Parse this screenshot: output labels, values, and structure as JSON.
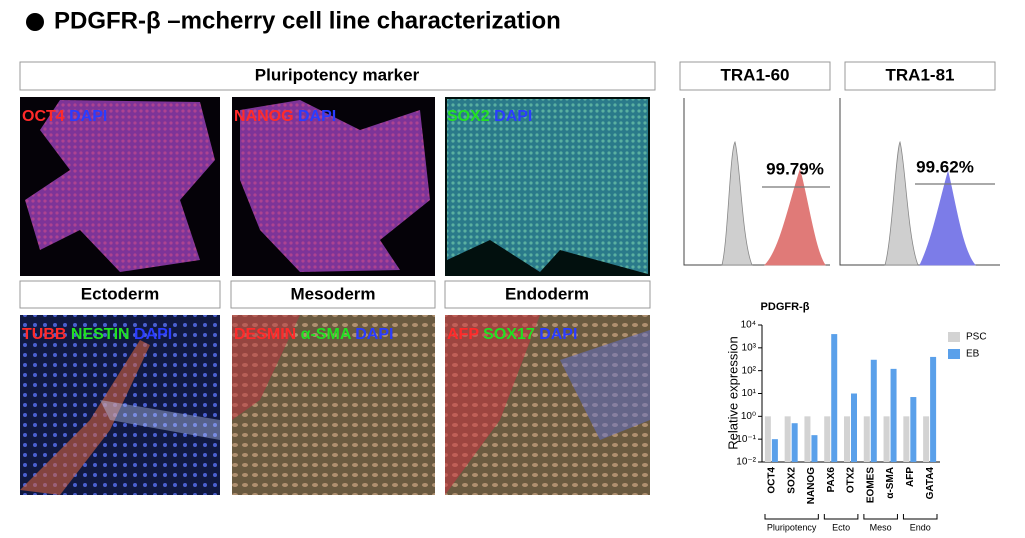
{
  "title": "PDGFR-β –mcherry cell line characterization",
  "pluripotency_header": "Pluripotency marker",
  "lineage_headers": [
    "Ectoderm",
    "Mesoderm",
    "Endoderm"
  ],
  "image_panels": [
    {
      "labels": [
        {
          "text": "OCT4",
          "color": "#ff2a2a"
        },
        {
          "text": "DAPI",
          "color": "#2a3cff"
        }
      ]
    },
    {
      "labels": [
        {
          "text": "NANOG",
          "color": "#ff2a2a"
        },
        {
          "text": "DAPI",
          "color": "#2a3cff"
        }
      ]
    },
    {
      "labels": [
        {
          "text": "SOX2",
          "color": "#22e022"
        },
        {
          "text": "DAPI",
          "color": "#2a3cff"
        }
      ]
    },
    {
      "labels": [
        {
          "text": "TUBB",
          "color": "#ff2a2a"
        },
        {
          "text": "NESTIN",
          "color": "#22e022"
        },
        {
          "text": "DAPI",
          "color": "#2a3cff"
        }
      ]
    },
    {
      "labels": [
        {
          "text": "DESMIN",
          "color": "#ff2a2a"
        },
        {
          "text": "α-SMA",
          "color": "#22e022"
        },
        {
          "text": "DAPI",
          "color": "#2a3cff"
        }
      ]
    },
    {
      "labels": [
        {
          "text": "AFP",
          "color": "#ff2a2a"
        },
        {
          "text": "SOX17",
          "color": "#22e022"
        },
        {
          "text": "DAPI",
          "color": "#2a3cff"
        }
      ]
    }
  ],
  "flow_panels": [
    {
      "title": "TRA1-60",
      "percent": "99.79%",
      "color": "#e07a78"
    },
    {
      "title": "TRA1-81",
      "percent": "99.62%",
      "color": "#7c7ce8"
    }
  ],
  "chart_data": {
    "type": "bar",
    "title": "PDGFR-β",
    "y_label": "Relative expression",
    "categories": [
      "OCT4",
      "SOX2",
      "NANOG",
      "PAX6",
      "OTX2",
      "EOMES",
      "α-SMA",
      "AFP",
      "GATA4"
    ],
    "groups": [
      "Pluripotency",
      "Ecto",
      "Meso",
      "Endo"
    ],
    "series": [
      {
        "name": "PSC",
        "color": "#d3d3d3",
        "values": [
          1,
          1,
          1,
          1,
          1,
          1,
          1,
          1,
          1
        ]
      },
      {
        "name": "EB",
        "color": "#5aa0ea",
        "values": [
          0.1,
          0.5,
          0.15,
          4000,
          10,
          300,
          120,
          7,
          400
        ]
      }
    ],
    "log_scale": true,
    "ylim": [
      0.01,
      10000
    ],
    "yticks": [
      {
        "value": 0.01,
        "label": "10⁻²"
      },
      {
        "value": 0.1,
        "label": "10⁻¹"
      },
      {
        "value": 1,
        "label": "10⁰"
      },
      {
        "value": 10,
        "label": "10¹"
      },
      {
        "value": 100,
        "label": "10²"
      },
      {
        "value": 1000,
        "label": "10³"
      },
      {
        "value": 10000,
        "label": "10⁴"
      }
    ]
  }
}
